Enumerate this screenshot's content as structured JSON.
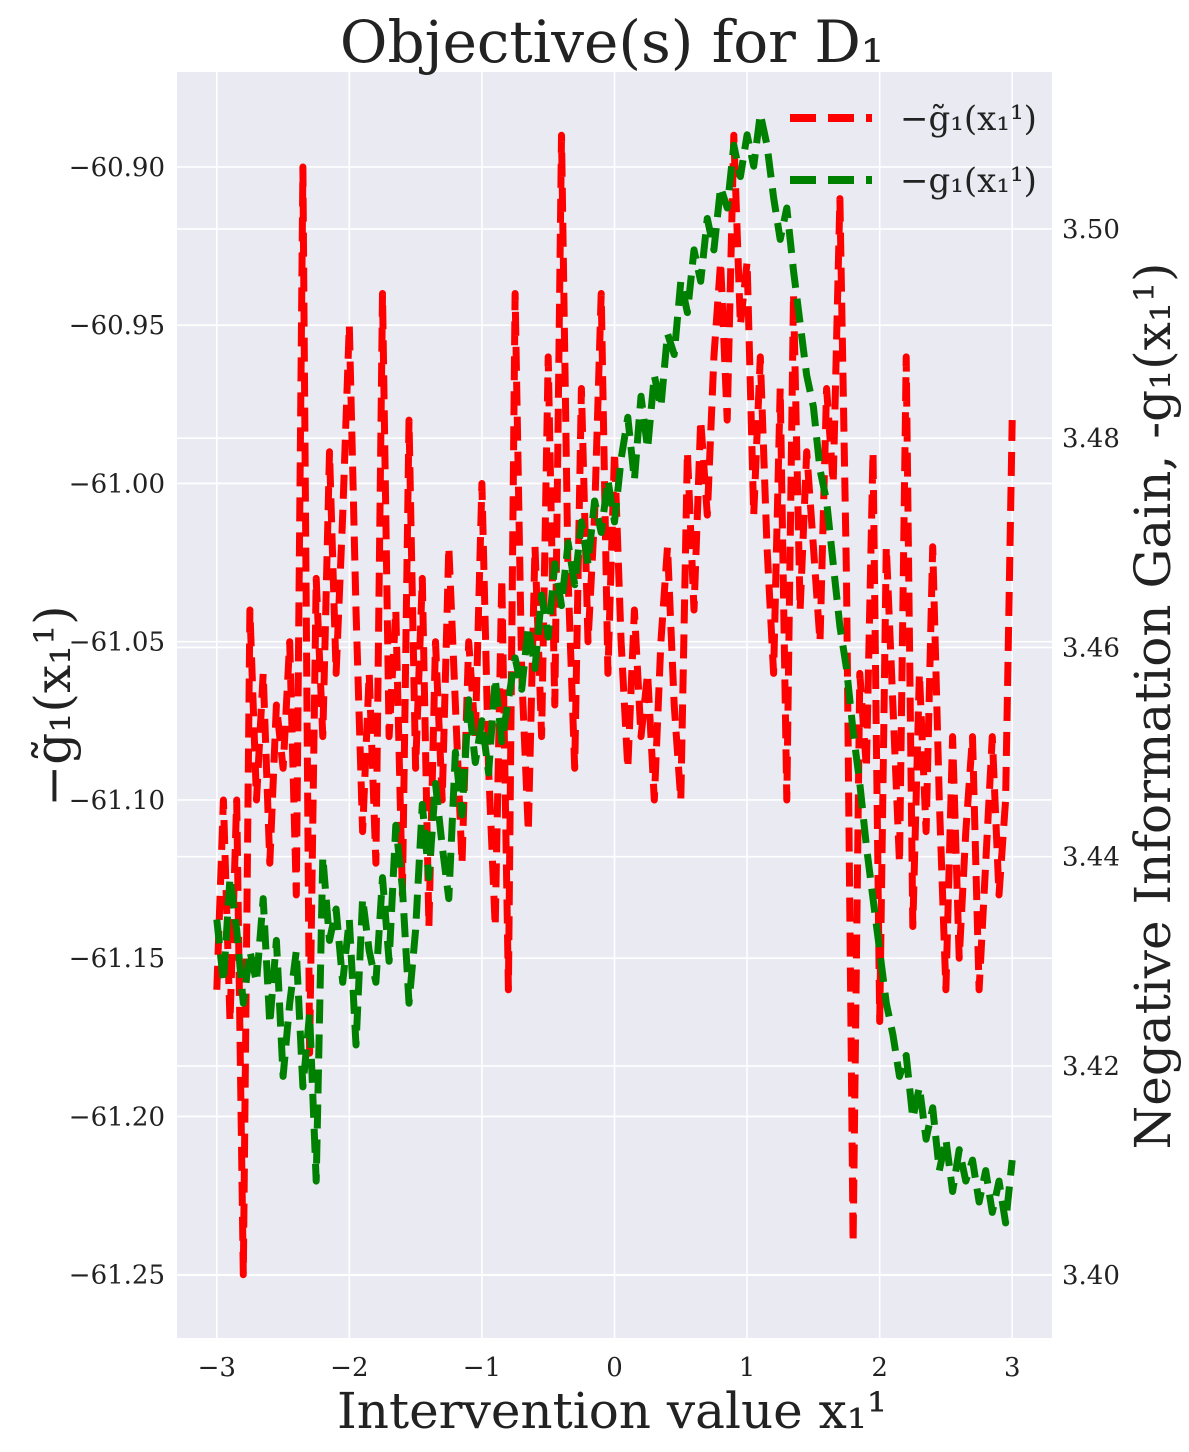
{
  "chart_data": {
    "type": "line",
    "title": "Objective(s) for D₁",
    "xlabel": "Intervention value x₁¹",
    "ylabel_left": "−g̃₁(x₁¹)",
    "ylabel_right": "Negative Information Gain, -g₁(x₁¹)",
    "background": "#eaeaf2",
    "grid": true,
    "legend_position": "top-right",
    "xlim": [
      -3.3,
      3.3
    ],
    "ylim_left": [
      -61.27,
      -60.87
    ],
    "ylim_right": [
      3.394,
      3.515
    ],
    "x_ticks": [
      -3,
      -2,
      -1,
      0,
      1,
      2,
      3
    ],
    "x_tick_labels": [
      "−3",
      "−2",
      "−1",
      "0",
      "1",
      "2",
      "3"
    ],
    "y_left_ticks": [
      -60.9,
      -60.95,
      -61.0,
      -61.05,
      -61.1,
      -61.15,
      -61.2,
      -61.25
    ],
    "y_left_tick_labels": [
      "−60.90",
      "−60.95",
      "−61.00",
      "−61.05",
      "−61.10",
      "−61.15",
      "−61.20",
      "−61.25"
    ],
    "y_right_ticks": [
      3.4,
      3.42,
      3.44,
      3.46,
      3.48,
      3.5
    ],
    "y_right_tick_labels": [
      "3.40",
      "3.42",
      "3.44",
      "3.46",
      "3.48",
      "3.50"
    ],
    "series": [
      {
        "name": "−g̃₁(x₁¹)",
        "axis": "left",
        "color": "#ff0000",
        "style": "dashed",
        "x": [
          -3.0,
          -2.95,
          -2.9,
          -2.85,
          -2.8,
          -2.75,
          -2.7,
          -2.65,
          -2.6,
          -2.55,
          -2.5,
          -2.45,
          -2.4,
          -2.35,
          -2.3,
          -2.25,
          -2.2,
          -2.15,
          -2.1,
          -2.05,
          -2.0,
          -1.95,
          -1.9,
          -1.85,
          -1.8,
          -1.75,
          -1.7,
          -1.65,
          -1.6,
          -1.55,
          -1.5,
          -1.45,
          -1.4,
          -1.35,
          -1.3,
          -1.25,
          -1.2,
          -1.15,
          -1.1,
          -1.05,
          -1.0,
          -0.95,
          -0.9,
          -0.85,
          -0.8,
          -0.75,
          -0.7,
          -0.65,
          -0.6,
          -0.55,
          -0.5,
          -0.45,
          -0.4,
          -0.35,
          -0.3,
          -0.25,
          -0.2,
          -0.15,
          -0.1,
          -0.05,
          0.0,
          0.05,
          0.1,
          0.15,
          0.2,
          0.25,
          0.3,
          0.35,
          0.4,
          0.45,
          0.5,
          0.55,
          0.6,
          0.65,
          0.7,
          0.75,
          0.8,
          0.85,
          0.9,
          0.95,
          1.0,
          1.05,
          1.1,
          1.15,
          1.2,
          1.25,
          1.3,
          1.35,
          1.4,
          1.45,
          1.5,
          1.55,
          1.6,
          1.65,
          1.7,
          1.75,
          1.8,
          1.85,
          1.9,
          1.95,
          2.0,
          2.05,
          2.1,
          2.15,
          2.2,
          2.25,
          2.3,
          2.35,
          2.4,
          2.45,
          2.5,
          2.55,
          2.6,
          2.65,
          2.7,
          2.75,
          2.8,
          2.85,
          2.9,
          2.95,
          3.0
        ],
        "y": [
          -61.16,
          -61.1,
          -61.17,
          -61.1,
          -61.25,
          -61.04,
          -61.1,
          -61.06,
          -61.12,
          -61.07,
          -61.09,
          -61.05,
          -61.13,
          -60.9,
          -61.18,
          -61.03,
          -61.08,
          -60.99,
          -61.06,
          -61.01,
          -60.95,
          -61.04,
          -61.11,
          -61.06,
          -61.12,
          -60.94,
          -61.08,
          -61.04,
          -61.13,
          -60.98,
          -61.09,
          -61.03,
          -61.14,
          -61.05,
          -61.1,
          -61.02,
          -61.07,
          -61.12,
          -61.05,
          -61.08,
          -61.0,
          -61.09,
          -61.14,
          -61.03,
          -61.16,
          -60.94,
          -61.06,
          -61.11,
          -61.02,
          -61.08,
          -60.96,
          -61.07,
          -60.89,
          -61.03,
          -61.09,
          -60.97,
          -61.05,
          -61.01,
          -60.94,
          -61.06,
          -60.99,
          -61.05,
          -61.09,
          -61.04,
          -61.08,
          -61.06,
          -61.1,
          -61.05,
          -61.02,
          -61.07,
          -61.1,
          -60.99,
          -61.04,
          -60.98,
          -61.01,
          -60.96,
          -60.93,
          -60.98,
          -60.89,
          -60.95,
          -60.93,
          -61.01,
          -60.96,
          -61.02,
          -61.06,
          -60.97,
          -61.1,
          -60.94,
          -61.04,
          -60.99,
          -61.02,
          -61.05,
          -60.97,
          -61.0,
          -60.91,
          -61.03,
          -61.24,
          -61.06,
          -61.09,
          -60.99,
          -61.17,
          -61.02,
          -61.07,
          -61.12,
          -60.96,
          -61.14,
          -61.06,
          -61.11,
          -61.02,
          -61.1,
          -61.16,
          -61.08,
          -61.15,
          -61.11,
          -61.08,
          -61.16,
          -61.12,
          -61.08,
          -61.13,
          -61.1,
          -60.98
        ]
      },
      {
        "name": "−g₁(x₁¹)",
        "axis": "right",
        "color": "#008000",
        "style": "dashed",
        "x": [
          -3.0,
          -2.95,
          -2.9,
          -2.85,
          -2.8,
          -2.75,
          -2.7,
          -2.65,
          -2.6,
          -2.55,
          -2.5,
          -2.45,
          -2.4,
          -2.35,
          -2.3,
          -2.25,
          -2.2,
          -2.15,
          -2.1,
          -2.05,
          -2.0,
          -1.95,
          -1.9,
          -1.85,
          -1.8,
          -1.75,
          -1.7,
          -1.65,
          -1.6,
          -1.55,
          -1.5,
          -1.45,
          -1.4,
          -1.35,
          -1.3,
          -1.25,
          -1.2,
          -1.15,
          -1.1,
          -1.05,
          -1.0,
          -0.95,
          -0.9,
          -0.85,
          -0.8,
          -0.75,
          -0.7,
          -0.65,
          -0.6,
          -0.55,
          -0.5,
          -0.45,
          -0.4,
          -0.35,
          -0.3,
          -0.25,
          -0.2,
          -0.15,
          -0.1,
          -0.05,
          0.0,
          0.05,
          0.1,
          0.15,
          0.2,
          0.25,
          0.3,
          0.35,
          0.4,
          0.45,
          0.5,
          0.55,
          0.6,
          0.65,
          0.7,
          0.75,
          0.8,
          0.85,
          0.9,
          0.95,
          1.0,
          1.05,
          1.1,
          1.15,
          1.2,
          1.25,
          1.3,
          1.35,
          1.4,
          1.45,
          1.5,
          1.55,
          1.6,
          1.65,
          1.7,
          1.75,
          1.8,
          1.85,
          1.9,
          1.95,
          2.0,
          2.05,
          2.1,
          2.15,
          2.2,
          2.25,
          2.3,
          2.35,
          2.4,
          2.45,
          2.5,
          2.55,
          2.6,
          2.65,
          2.7,
          2.75,
          2.8,
          2.85,
          2.9,
          2.95,
          3.0
        ],
        "y": [
          3.434,
          3.428,
          3.438,
          3.433,
          3.426,
          3.431,
          3.428,
          3.436,
          3.424,
          3.432,
          3.419,
          3.426,
          3.431,
          3.418,
          3.425,
          3.409,
          3.44,
          3.432,
          3.435,
          3.428,
          3.434,
          3.422,
          3.436,
          3.431,
          3.428,
          3.438,
          3.43,
          3.443,
          3.437,
          3.426,
          3.433,
          3.445,
          3.438,
          3.447,
          3.441,
          3.436,
          3.45,
          3.444,
          3.455,
          3.449,
          3.453,
          3.448,
          3.457,
          3.451,
          3.455,
          3.459,
          3.456,
          3.462,
          3.458,
          3.465,
          3.461,
          3.468,
          3.464,
          3.47,
          3.466,
          3.472,
          3.468,
          3.474,
          3.471,
          3.476,
          3.472,
          3.478,
          3.482,
          3.476,
          3.484,
          3.479,
          3.486,
          3.483,
          3.49,
          3.488,
          3.495,
          3.492,
          3.498,
          3.495,
          3.501,
          3.498,
          3.504,
          3.502,
          3.508,
          3.505,
          3.509,
          3.506,
          3.511,
          3.508,
          3.503,
          3.499,
          3.502,
          3.496,
          3.491,
          3.486,
          3.483,
          3.477,
          3.474,
          3.468,
          3.462,
          3.458,
          3.452,
          3.447,
          3.441,
          3.436,
          3.431,
          3.426,
          3.423,
          3.419,
          3.421,
          3.415,
          3.418,
          3.413,
          3.416,
          3.41,
          3.413,
          3.408,
          3.412,
          3.409,
          3.411,
          3.407,
          3.41,
          3.406,
          3.409,
          3.405,
          3.411
        ]
      }
    ]
  }
}
